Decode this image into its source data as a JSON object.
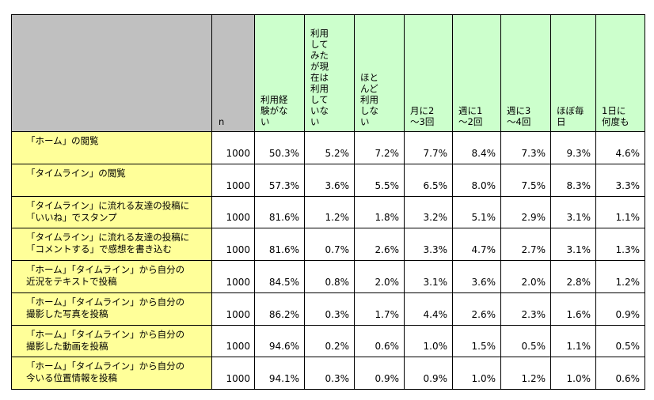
{
  "chart_data": {
    "type": "table",
    "n_header": "n",
    "columns": [
      "利用経\n験がな\nい",
      "利用\nして\nみた\nが現\n在は\n利用\nして\nいな\nい",
      "ほと\nんど\n利用\nしな\nい",
      "月に2\n～3回",
      "週に1\n～2回",
      "週に3\n～4回",
      "ほぼ毎\n日",
      "1日に\n何度も"
    ],
    "rows": [
      {
        "label": "「ホーム」の閲覧",
        "n": "1000",
        "values": [
          "50.3%",
          "5.2%",
          "7.2%",
          "7.7%",
          "8.4%",
          "7.3%",
          "9.3%",
          "4.6%"
        ]
      },
      {
        "label": "「タイムライン」の閲覧",
        "n": "1000",
        "values": [
          "57.3%",
          "3.6%",
          "5.5%",
          "6.5%",
          "8.0%",
          "7.5%",
          "8.3%",
          "3.3%"
        ]
      },
      {
        "label": "「タイムライン」に流れる友達の投稿に\n「いいね」でスタンプ",
        "n": "1000",
        "values": [
          "81.6%",
          "1.2%",
          "1.8%",
          "3.2%",
          "5.1%",
          "2.9%",
          "3.1%",
          "1.1%"
        ]
      },
      {
        "label": "「タイムライン」に流れる友達の投稿に\n「コメントする」で感想を書き込む",
        "n": "1000",
        "values": [
          "81.6%",
          "0.7%",
          "2.6%",
          "3.3%",
          "4.7%",
          "2.7%",
          "3.1%",
          "1.3%"
        ]
      },
      {
        "label": "「ホーム」「タイムライン」から自分の\n近況をテキストで投稿",
        "n": "1000",
        "values": [
          "84.5%",
          "0.8%",
          "2.0%",
          "3.1%",
          "3.6%",
          "2.0%",
          "2.8%",
          "1.2%"
        ]
      },
      {
        "label": "「ホーム」「タイムライン」から自分の\n撮影した写真を投稿",
        "n": "1000",
        "values": [
          "86.2%",
          "0.3%",
          "1.7%",
          "4.4%",
          "2.6%",
          "2.3%",
          "1.6%",
          "0.9%"
        ]
      },
      {
        "label": "「ホーム」「タイムライン」から自分の\n撮影した動画を投稿",
        "n": "1000",
        "values": [
          "94.6%",
          "0.2%",
          "0.6%",
          "1.0%",
          "1.5%",
          "0.5%",
          "1.1%",
          "0.5%"
        ]
      },
      {
        "label": "「ホーム」「タイムライン」から自分の\n今いる位置情報を投稿",
        "n": "1000",
        "values": [
          "94.1%",
          "0.3%",
          "0.9%",
          "0.9%",
          "1.0%",
          "1.2%",
          "1.0%",
          "0.6%"
        ]
      }
    ]
  },
  "colors": {
    "header_bg": "#ccffcc",
    "label_bg": "#ffff99",
    "corner_bg": "#c0c0c0"
  }
}
